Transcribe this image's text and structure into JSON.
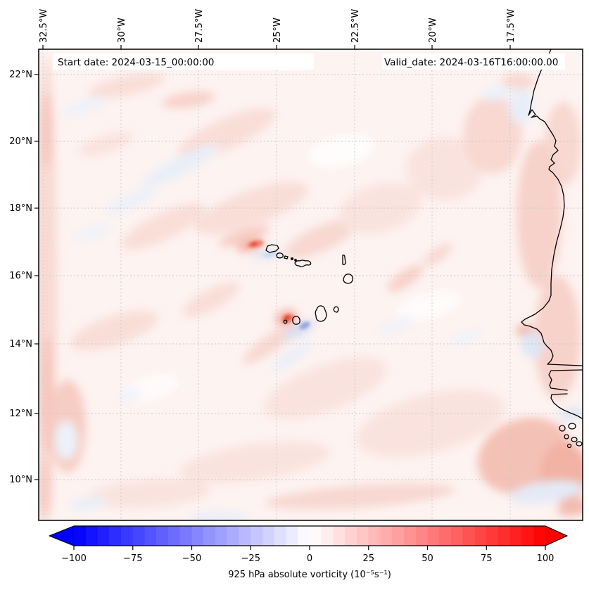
{
  "figure": {
    "start_date": "Start date: 2024-03-15_00:00:00",
    "valid_date": "Valid_date: 2024-03-16T16:00:00.00"
  },
  "axes": {
    "top_ticks": [
      "32.5°W",
      "30°W",
      "27.5°W",
      "25°W",
      "22.5°W",
      "20°W",
      "17.5°W"
    ],
    "left_ticks": [
      "22°N",
      "20°N",
      "18°N",
      "16°N",
      "14°N",
      "12°N",
      "10°N"
    ]
  },
  "colorbar": {
    "label": "925 hPa absolute vorticity (10⁻⁵s⁻¹)",
    "tick_labels": [
      "−100",
      "−75",
      "−50",
      "−25",
      "0",
      "25",
      "50",
      "75",
      "100"
    ],
    "ticks": [
      -100,
      -75,
      -50,
      -25,
      0,
      25,
      50,
      75,
      100
    ],
    "range": [
      -100,
      100
    ],
    "n_bands": 40,
    "extend": "both",
    "colormap": "bwr",
    "colors": {
      "min": "#0000ff",
      "mid": "#ffffff",
      "max": "#ff0000"
    }
  },
  "chart_data": {
    "type": "heatmap",
    "field": "925 hPa absolute vorticity",
    "units": "10⁻⁵ s⁻¹",
    "start_date": "2024-03-15_00:00:00",
    "valid_date": "2024-03-16T16:00:00.00",
    "x_axis": {
      "position": "top",
      "tick_labels": [
        "32.5°W",
        "30°W",
        "27.5°W",
        "25°W",
        "22.5°W",
        "20°W",
        "17.5°W"
      ],
      "tick_values": [
        -32.5,
        -30,
        -27.5,
        -25,
        -22.5,
        -20,
        -17.5
      ]
    },
    "y_axis": {
      "position": "left",
      "tick_labels": [
        "22°N",
        "20°N",
        "18°N",
        "16°N",
        "14°N",
        "12°N",
        "10°N"
      ],
      "tick_values": [
        22,
        20,
        18,
        16,
        14,
        12,
        10
      ]
    },
    "extent": {
      "lon": [
        -32.6,
        -15.2
      ],
      "lat": [
        8.8,
        22.8
      ]
    },
    "grid": true,
    "colorbar": {
      "orientation": "horizontal",
      "range": [
        -100,
        100
      ],
      "ticks": [
        -100,
        -75,
        -50,
        -25,
        0,
        25,
        50,
        75,
        100
      ],
      "colormap": "bwr",
      "extend": "both",
      "label": "925 hPa absolute vorticity (10⁻⁵s⁻¹)"
    },
    "value_summary": "Field is mostly weakly positive (light red). Strong positive cores west of Santo Antão and northwest of Fogo (Cape Verde), with adjacent negative (blue) streaks; enhanced positive band along the West African coast and in the southeast corner."
  }
}
